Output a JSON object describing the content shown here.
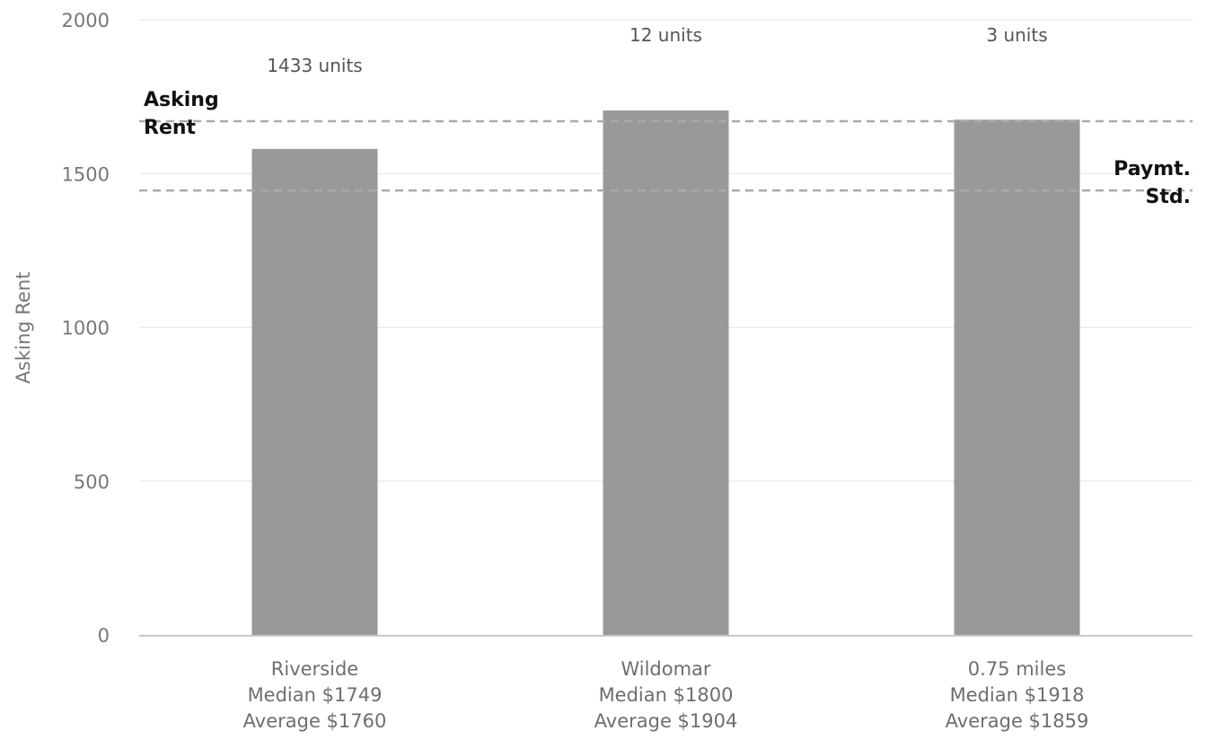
{
  "chart_data": {
    "type": "bar",
    "categories": [
      "Riverside",
      "Wildomar",
      "0.75 miles"
    ],
    "category_sublabels": [
      [
        "Median $1749",
        "Average $1760"
      ],
      [
        "Median $1800",
        "Average $1904"
      ],
      [
        "Median $1918",
        "Average $1859"
      ]
    ],
    "values": [
      1580,
      1705,
      1675
    ],
    "bar_annotations": [
      "1433 units",
      "12 units",
      "3 units"
    ],
    "ylabel": "Asking Rent",
    "xlabel": "",
    "ylim": [
      0,
      2000
    ],
    "yticks": [
      0,
      500,
      1000,
      1500,
      2000
    ],
    "reference_lines": [
      {
        "label_lines": [
          "Asking",
          "Rent"
        ],
        "value": 1670,
        "label_position": "left"
      },
      {
        "label_lines": [
          "Paymt.",
          "Std."
        ],
        "value": 1445,
        "label_position": "right"
      }
    ],
    "grid": true,
    "colors": {
      "bar": "#999999",
      "grid": "#e6e6e6",
      "reference": "#aaaaaa",
      "axis": "#c8c8c8"
    }
  }
}
